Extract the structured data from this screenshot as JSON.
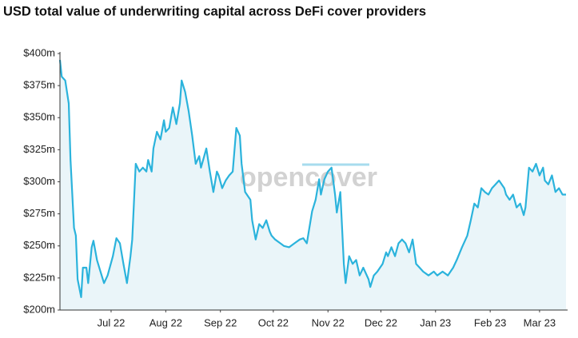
{
  "chart_data": {
    "type": "area",
    "title": "USD total value of underwriting capital across DeFi cover providers",
    "watermark": "opencover",
    "series": [
      {
        "color": "#2bb3dc",
        "x": [
          0,
          1,
          3,
          5,
          6,
          8,
          9,
          10,
          12,
          13,
          15,
          16,
          18,
          19,
          21,
          23,
          25,
          27,
          30,
          32,
          34,
          36,
          38,
          40,
          41,
          43,
          45,
          47,
          49,
          50,
          52,
          53,
          55,
          57,
          59,
          60,
          62,
          64,
          66,
          68,
          69,
          71,
          73,
          75,
          77,
          79,
          80,
          83,
          85,
          87,
          89,
          90,
          92,
          94,
          96,
          98,
          100,
          102,
          103,
          105,
          108,
          109,
          111,
          113,
          115,
          117,
          119,
          120,
          122,
          125,
          127,
          130,
          133,
          136,
          138,
          140,
          143,
          145,
          147,
          148,
          150,
          152,
          154,
          156,
          157,
          159,
          161,
          162,
          164,
          166,
          168,
          170,
          172,
          175,
          176,
          178,
          180,
          183,
          185,
          186,
          188,
          190,
          192,
          194,
          196,
          198,
          200,
          202,
          204,
          206,
          209,
          212,
          214,
          217,
          220,
          223,
          225,
          228,
          231,
          233,
          235,
          237,
          239,
          241,
          243,
          245,
          247,
          249,
          252,
          253,
          255,
          257,
          259,
          261,
          263,
          264,
          266,
          268,
          270,
          272,
          274,
          275,
          277,
          279,
          281,
          283,
          285,
          287
        ],
        "values": [
          395,
          382,
          379,
          361,
          317,
          264,
          258,
          224,
          210,
          233,
          233,
          221,
          249,
          254,
          239,
          230,
          221,
          227,
          242,
          256,
          252,
          236,
          221,
          242,
          255,
          314,
          308,
          311,
          308,
          317,
          308,
          326,
          339,
          333,
          348,
          339,
          342,
          358,
          345,
          361,
          379,
          370,
          355,
          336,
          314,
          320,
          311,
          326,
          308,
          292,
          308,
          305,
          295,
          301,
          305,
          308,
          342,
          336,
          314,
          292,
          286,
          270,
          255,
          267,
          264,
          270,
          261,
          258,
          255,
          252,
          250,
          249,
          252,
          255,
          256,
          252,
          277,
          286,
          302,
          290,
          302,
          308,
          311,
          290,
          276,
          292,
          236,
          221,
          242,
          236,
          239,
          227,
          233,
          224,
          218,
          227,
          230,
          236,
          245,
          242,
          249,
          242,
          252,
          255,
          252,
          245,
          255,
          236,
          233,
          230,
          227,
          230,
          227,
          230,
          227,
          233,
          239,
          249,
          258,
          270,
          283,
          280,
          295,
          292,
          290,
          295,
          298,
          301,
          295,
          290,
          286,
          290,
          280,
          283,
          274,
          280,
          311,
          308,
          314,
          305,
          311,
          301,
          298,
          305,
          292,
          295,
          290,
          290
        ]
      }
    ],
    "xlim": [
      0,
      287
    ],
    "xticks": [
      {
        "value": 29,
        "label": "Jul 22"
      },
      {
        "value": 60,
        "label": "Aug 22"
      },
      {
        "value": 91,
        "label": "Sep 22"
      },
      {
        "value": 121,
        "label": "Oct 22"
      },
      {
        "value": 152,
        "label": "Nov 22"
      },
      {
        "value": 182,
        "label": "Dec 22"
      },
      {
        "value": 213,
        "label": "Jan 23"
      },
      {
        "value": 244,
        "label": "Feb 23"
      },
      {
        "value": 272,
        "label": "Mar 23"
      }
    ],
    "ylim": [
      200,
      400
    ],
    "yticks": [
      {
        "value": 200,
        "label": "$200m"
      },
      {
        "value": 225,
        "label": "$225m"
      },
      {
        "value": 250,
        "label": "$250m"
      },
      {
        "value": 275,
        "label": "$275m"
      },
      {
        "value": 300,
        "label": "$300m"
      },
      {
        "value": 325,
        "label": "$325m"
      },
      {
        "value": 350,
        "label": "$350m"
      },
      {
        "value": 375,
        "label": "$375m"
      },
      {
        "value": 400,
        "label": "$400m"
      }
    ]
  }
}
